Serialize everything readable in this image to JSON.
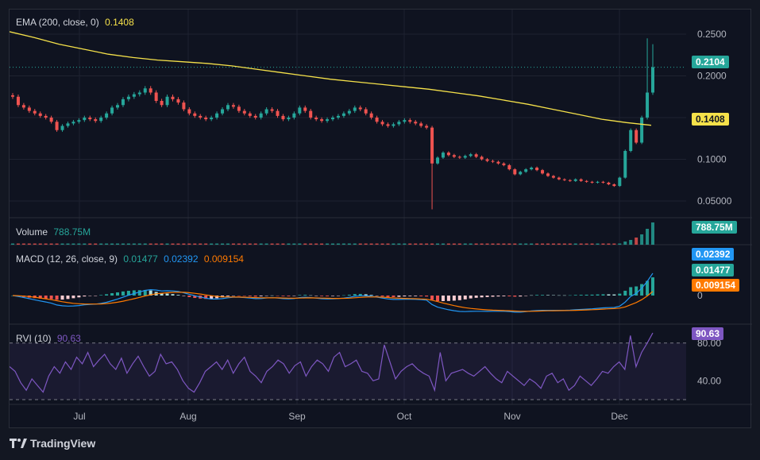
{
  "legends": {
    "ema": {
      "label": "EMA (200, close, 0)",
      "value": "0.1408",
      "value_color": "#f5e14a"
    },
    "volume": {
      "label": "Volume",
      "value": "788.75M",
      "value_color": "#26a69a"
    },
    "macd": {
      "label": "MACD (12, 26, close, 9)",
      "hist": "0.01477",
      "macd": "0.02392",
      "signal": "0.009154",
      "hist_color": "#26a69a",
      "macd_color": "#2196f3",
      "signal_color": "#ff7a00"
    },
    "rvi": {
      "label": "RVI (10)",
      "value": "90.63",
      "value_color": "#7e57c2"
    }
  },
  "badges": {
    "price": "0.2104",
    "ema": "0.1408",
    "volume": "788.75M",
    "macd": "0.02392",
    "hist": "0.01477",
    "signal": "0.009154",
    "rvi": "90.63"
  },
  "colors": {
    "up": "#26a69a",
    "down": "#ef5350",
    "ema": "#f5e14a",
    "macd": "#2196f3",
    "signal": "#ff7a00",
    "rvi": "#7e57c2"
  },
  "footer": {
    "brand": "TradingView"
  },
  "chart_data": {
    "type": "candlestick",
    "x_ticks": [
      "Jul",
      "Aug",
      "Sep",
      "Oct",
      "Nov",
      "Dec"
    ],
    "price_axis": {
      "ticks": [
        "0.2500",
        "0.2000",
        "0.1500",
        "0.1000",
        "0.05000"
      ],
      "ylim": [
        0.03,
        0.27
      ]
    },
    "macd_axis": {
      "ticks": [
        "0"
      ]
    },
    "rvi_axis": {
      "ticks": [
        "80.00",
        "40.00"
      ],
      "ylim": [
        15,
        100
      ],
      "bands": [
        80,
        20
      ]
    },
    "last_price": 0.2104,
    "close_series": [
      0.175,
      0.165,
      0.162,
      0.158,
      0.155,
      0.152,
      0.15,
      0.145,
      0.135,
      0.14,
      0.143,
      0.145,
      0.147,
      0.15,
      0.148,
      0.146,
      0.15,
      0.155,
      0.162,
      0.165,
      0.172,
      0.175,
      0.178,
      0.18,
      0.185,
      0.18,
      0.17,
      0.165,
      0.175,
      0.172,
      0.168,
      0.16,
      0.155,
      0.152,
      0.15,
      0.148,
      0.15,
      0.155,
      0.16,
      0.165,
      0.163,
      0.158,
      0.155,
      0.152,
      0.15,
      0.155,
      0.16,
      0.158,
      0.152,
      0.148,
      0.15,
      0.155,
      0.162,
      0.158,
      0.15,
      0.148,
      0.146,
      0.148,
      0.15,
      0.152,
      0.155,
      0.158,
      0.162,
      0.16,
      0.155,
      0.15,
      0.145,
      0.142,
      0.14,
      0.142,
      0.145,
      0.147,
      0.145,
      0.143,
      0.14,
      0.138,
      0.095,
      0.102,
      0.108,
      0.105,
      0.103,
      0.102,
      0.104,
      0.106,
      0.103,
      0.1,
      0.098,
      0.097,
      0.095,
      0.093,
      0.088,
      0.082,
      0.085,
      0.088,
      0.09,
      0.087,
      0.083,
      0.08,
      0.078,
      0.076,
      0.075,
      0.074,
      0.076,
      0.074,
      0.073,
      0.072,
      0.073,
      0.072,
      0.07,
      0.068,
      0.078,
      0.11,
      0.135,
      0.12,
      0.15,
      0.18,
      0.2104
    ],
    "ema_series": [
      0.253,
      0.246,
      0.238,
      0.232,
      0.226,
      0.222,
      0.219,
      0.217,
      0.215,
      0.212,
      0.208,
      0.204,
      0.2,
      0.196,
      0.193,
      0.19,
      0.187,
      0.184,
      0.18,
      0.176,
      0.171,
      0.166,
      0.16,
      0.154,
      0.148,
      0.144,
      0.1408
    ],
    "volume_last": "788.75M",
    "macd_hist_last": 0.01477,
    "macd_last": 0.02392,
    "signal_last": 0.009154,
    "rvi_series": [
      55,
      50,
      38,
      30,
      42,
      35,
      28,
      45,
      55,
      48,
      60,
      52,
      65,
      58,
      70,
      55,
      62,
      68,
      58,
      52,
      64,
      48,
      58,
      66,
      55,
      45,
      50,
      68,
      58,
      60,
      52,
      40,
      32,
      28,
      38,
      50,
      55,
      60,
      52,
      62,
      48,
      58,
      65,
      50,
      45,
      38,
      50,
      55,
      62,
      58,
      48,
      56,
      60,
      45,
      55,
      62,
      58,
      50,
      65,
      70,
      55,
      58,
      62,
      50,
      48,
      40,
      42,
      78,
      60,
      42,
      50,
      55,
      58,
      52,
      48,
      45,
      30,
      70,
      40,
      48,
      50,
      52,
      48,
      45,
      50,
      55,
      48,
      42,
      38,
      50,
      45,
      40,
      35,
      42,
      38,
      32,
      45,
      48,
      38,
      42,
      30,
      35,
      45,
      40,
      35,
      42,
      50,
      48,
      55,
      60,
      52,
      88,
      55,
      70,
      80,
      90.63
    ]
  }
}
